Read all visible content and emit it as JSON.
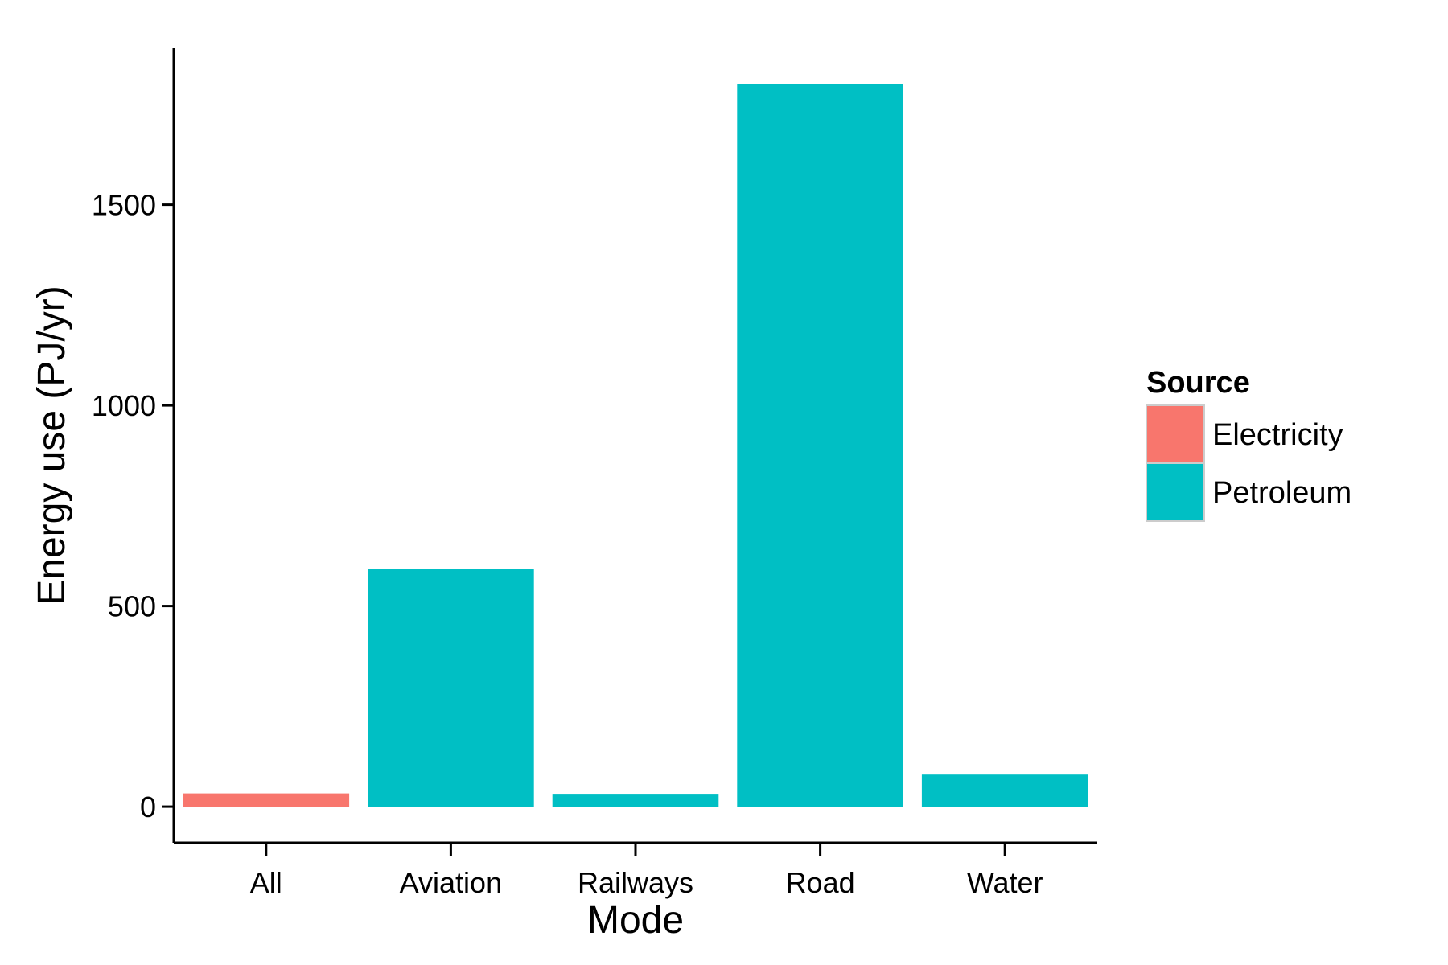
{
  "chart_data": {
    "type": "bar",
    "xlabel": "Mode",
    "ylabel": "Energy use (PJ/yr)",
    "categories": [
      "All",
      "Aviation",
      "Railways",
      "Road",
      "Water"
    ],
    "bars": [
      {
        "category": "All",
        "source": "Electricity",
        "value": 33
      },
      {
        "category": "Aviation",
        "source": "Petroleum",
        "value": 592
      },
      {
        "category": "Railways",
        "source": "Petroleum",
        "value": 32
      },
      {
        "category": "Road",
        "source": "Petroleum",
        "value": 1800
      },
      {
        "category": "Water",
        "source": "Petroleum",
        "value": 80
      }
    ],
    "yticks": [
      0,
      500,
      1000,
      1500
    ],
    "ylim": [
      -90,
      1890
    ],
    "grid": false,
    "legend": {
      "title": "Source",
      "placement": "right",
      "entries": [
        {
          "name": "Electricity",
          "color": "#F8766D"
        },
        {
          "name": "Petroleum",
          "color": "#00BFC4"
        }
      ]
    }
  }
}
